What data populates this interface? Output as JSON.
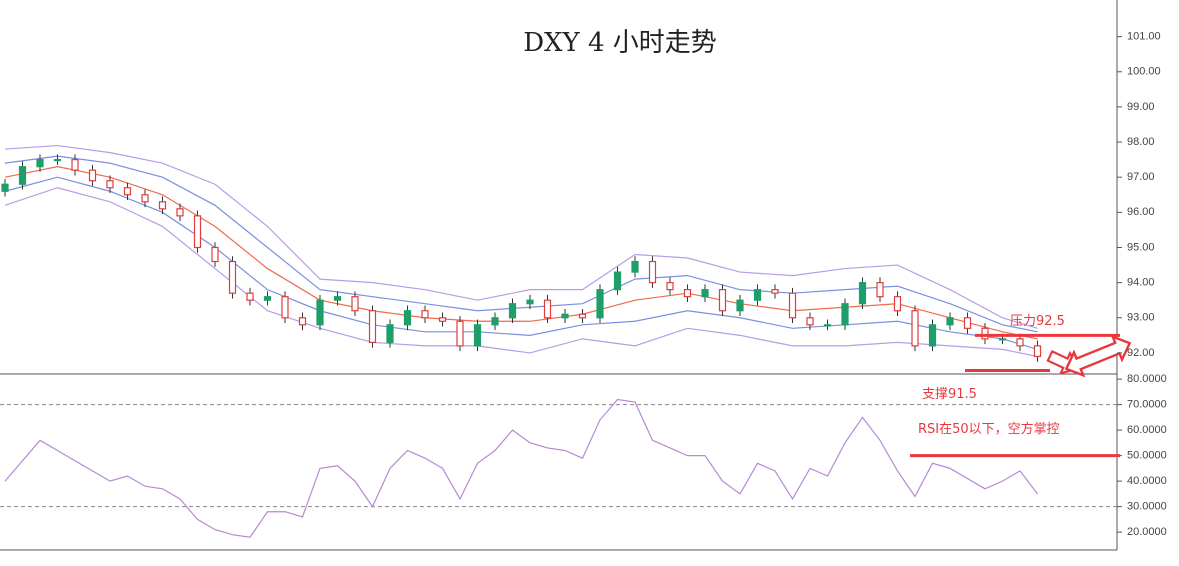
{
  "chart_data": [
    {
      "type": "candlestick",
      "title": "DXY 4 小时走势",
      "open": [
        96.6,
        96.8,
        97.3,
        97.5,
        97.5,
        97.2,
        96.9,
        96.7,
        96.5,
        96.3,
        96.1,
        95.9,
        95.0,
        94.6,
        93.7,
        93.5,
        93.6,
        93.0,
        92.8,
        93.5,
        93.6,
        93.2,
        92.3,
        92.8,
        93.2,
        93.0,
        92.9,
        92.2,
        92.8,
        93.0,
        93.4,
        93.5,
        93.0,
        93.1,
        93.0,
        93.8,
        94.3,
        94.6,
        94.0,
        93.8,
        93.6,
        93.8,
        93.2,
        93.5,
        93.8,
        93.7,
        93.0,
        92.8,
        92.8,
        93.4,
        94.0,
        93.6,
        93.2,
        92.2,
        92.8,
        93.0,
        92.7,
        92.4,
        92.4,
        92.2
      ],
      "high": [
        96.95,
        97.45,
        97.65,
        97.65,
        97.65,
        97.35,
        97.05,
        96.85,
        96.65,
        96.45,
        96.25,
        96.05,
        95.15,
        94.75,
        93.85,
        93.75,
        93.75,
        93.15,
        93.65,
        93.75,
        93.75,
        93.35,
        92.95,
        93.35,
        93.35,
        93.15,
        93.05,
        92.95,
        93.15,
        93.55,
        93.65,
        93.65,
        93.25,
        93.25,
        93.95,
        94.45,
        94.75,
        94.75,
        94.15,
        93.95,
        93.95,
        93.95,
        93.65,
        93.95,
        93.95,
        93.85,
        93.15,
        92.95,
        93.55,
        94.15,
        94.15,
        93.75,
        93.35,
        92.95,
        93.15,
        93.15,
        92.85,
        92.55,
        92.55,
        92.35
      ],
      "low": [
        96.45,
        96.65,
        97.15,
        97.35,
        97.05,
        96.75,
        96.55,
        96.35,
        96.15,
        95.95,
        95.75,
        94.85,
        94.45,
        93.55,
        93.35,
        93.35,
        92.85,
        92.65,
        92.65,
        93.35,
        93.05,
        92.15,
        92.15,
        92.65,
        92.85,
        92.75,
        92.05,
        92.05,
        92.65,
        92.85,
        93.25,
        92.85,
        92.85,
        92.85,
        92.85,
        93.65,
        94.15,
        93.85,
        93.65,
        93.45,
        93.45,
        93.05,
        93.05,
        93.35,
        93.55,
        92.85,
        92.65,
        92.65,
        92.65,
        93.25,
        93.45,
        93.05,
        92.05,
        92.05,
        92.65,
        92.55,
        92.25,
        92.25,
        92.05,
        91.75
      ],
      "close": [
        96.8,
        97.3,
        97.5,
        97.5,
        97.2,
        96.9,
        96.7,
        96.5,
        96.3,
        96.1,
        95.9,
        95.0,
        94.6,
        93.7,
        93.5,
        93.6,
        93.0,
        92.8,
        93.5,
        93.6,
        93.2,
        92.3,
        92.8,
        93.2,
        93.0,
        92.9,
        92.2,
        92.8,
        93.0,
        93.4,
        93.5,
        93.0,
        93.1,
        93.0,
        93.8,
        94.3,
        94.6,
        94.0,
        93.8,
        93.6,
        93.8,
        93.2,
        93.5,
        93.8,
        93.7,
        93.0,
        92.8,
        92.8,
        93.4,
        94.0,
        93.6,
        93.2,
        92.2,
        92.8,
        93.0,
        92.7,
        92.4,
        92.4,
        92.2,
        91.9
      ],
      "up_color": "#1f9e6a",
      "down_color": "#e03c3c",
      "lines": {
        "x": [
          0,
          3,
          6,
          9,
          12,
          15,
          18,
          21,
          24,
          27,
          30,
          33,
          36,
          39,
          42,
          45,
          48,
          51,
          54,
          57,
          59
        ],
        "series": [
          {
            "color": "#b99be8",
            "values": [
              97.8,
              97.9,
              97.7,
              97.4,
              96.8,
              95.6,
              94.1,
              94.0,
              93.8,
              93.5,
              93.8,
              93.8,
              94.8,
              94.7,
              94.3,
              94.2,
              94.4,
              94.5,
              93.8,
              93.0,
              92.7
            ]
          },
          {
            "color": "#7b8fe0",
            "values": [
              97.4,
              97.6,
              97.4,
              97.0,
              96.2,
              95.0,
              93.8,
              93.6,
              93.4,
              93.2,
              93.3,
              93.4,
              94.1,
              94.2,
              93.8,
              93.7,
              93.8,
              93.9,
              93.4,
              92.8,
              92.6
            ]
          },
          {
            "color": "#ee6b4d",
            "values": [
              97.0,
              97.3,
              97.0,
              96.5,
              95.6,
              94.4,
              93.5,
              93.2,
              93.0,
              92.9,
              92.9,
              93.1,
              93.5,
              93.7,
              93.4,
              93.2,
              93.3,
              93.4,
              93.0,
              92.6,
              92.4
            ]
          },
          {
            "color": "#7b8fe0",
            "values": [
              96.6,
              97.0,
              96.6,
              96.0,
              95.0,
              93.8,
              93.2,
              92.8,
              92.6,
              92.6,
              92.5,
              92.8,
              92.9,
              93.2,
              93.0,
              92.7,
              92.8,
              92.9,
              92.6,
              92.4,
              92.1
            ]
          },
          {
            "color": "#b99be8",
            "values": [
              96.2,
              96.7,
              96.3,
              95.6,
              94.4,
              93.2,
              92.7,
              92.3,
              92.2,
              92.2,
              92.0,
              92.4,
              92.2,
              92.7,
              92.5,
              92.2,
              92.2,
              92.3,
              92.2,
              92.1,
              91.9
            ]
          }
        ]
      },
      "ylim": [
        91.4,
        101.9
      ],
      "yticks": [
        {
          "value": 92,
          "label": "92.00"
        },
        {
          "value": 93,
          "label": "93.00"
        },
        {
          "value": 94,
          "label": "94.00"
        },
        {
          "value": 95,
          "label": "95.00"
        },
        {
          "value": 96,
          "label": "96.00"
        },
        {
          "value": 97,
          "label": "97.00"
        },
        {
          "value": 98,
          "label": "98.00"
        },
        {
          "value": 99,
          "label": "99.00"
        },
        {
          "value": 100,
          "label": "100.00"
        },
        {
          "value": 101,
          "label": "101.00"
        }
      ],
      "annotations": [
        {
          "text": "压力92.5",
          "value": 92.5,
          "color": "#e8383d"
        },
        {
          "text": "支撑91.5",
          "value": 91.5,
          "color": "#e8383d"
        }
      ]
    },
    {
      "type": "line",
      "values": [
        40,
        48,
        56,
        52,
        48,
        44,
        40,
        42,
        38,
        37,
        33,
        25,
        21,
        19,
        18,
        28,
        28,
        26,
        45,
        46,
        40,
        30,
        45,
        52,
        49,
        45,
        33,
        47,
        52,
        60,
        55,
        53,
        52,
        49,
        64,
        72,
        71,
        56,
        53,
        50,
        50,
        40,
        35,
        47,
        44,
        33,
        45,
        42,
        55,
        65,
        56,
        44,
        34,
        47,
        45,
        41,
        37,
        40,
        44,
        35
      ],
      "color": "#b58ad6",
      "ylim": [
        13,
        81.6
      ],
      "yticks": [
        {
          "value": 20,
          "label": "20.0000"
        },
        {
          "value": 30,
          "label": "30.0000"
        },
        {
          "value": 40,
          "label": "40.0000"
        },
        {
          "value": 50,
          "label": "50.0000"
        },
        {
          "value": 60,
          "label": "60.0000"
        },
        {
          "value": 70,
          "label": "70.0000"
        },
        {
          "value": 80,
          "label": "80.0000"
        }
      ],
      "levels": [
        70,
        30
      ],
      "annotations": [
        {
          "text": "RSI在50以下，空方掌控",
          "value": 50,
          "color": "#e8383d"
        }
      ]
    }
  ]
}
